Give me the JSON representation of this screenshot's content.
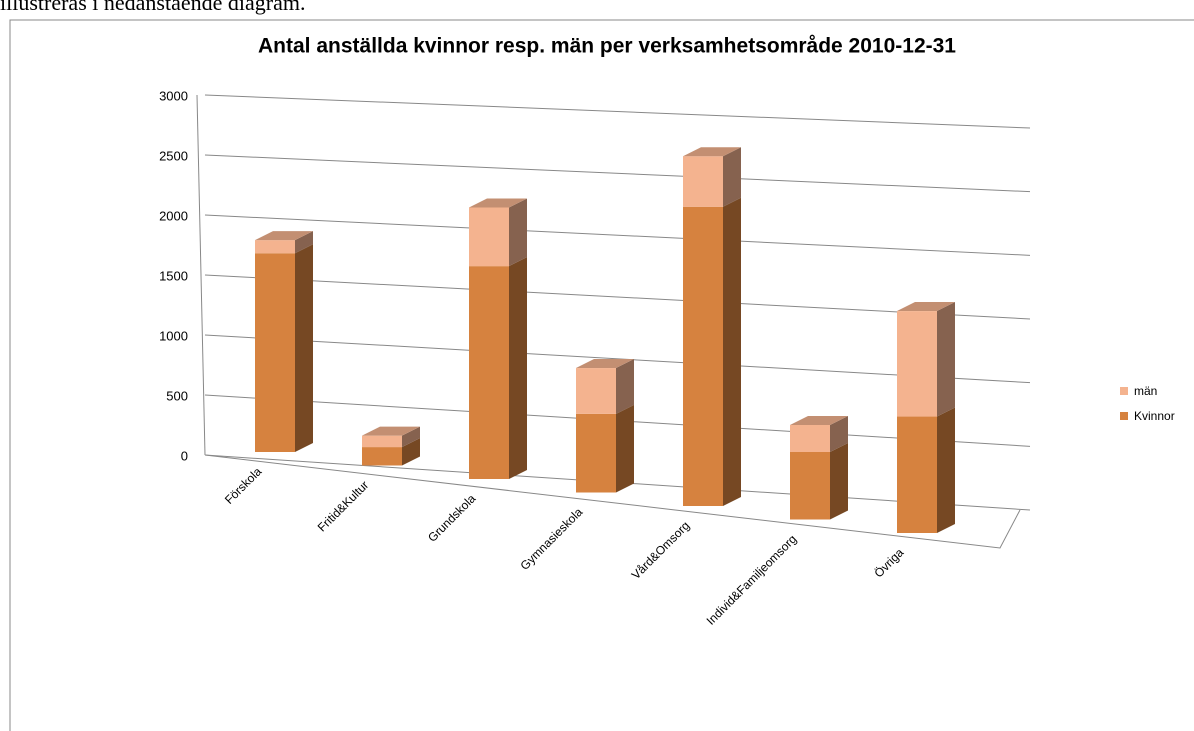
{
  "caption": "illustreras i nedanstående diagram.",
  "chart_data": {
    "type": "bar3d_stacked",
    "title": "Antal anställda kvinnor resp. män per verksamhetsområde  2010-12-31",
    "categories": [
      "Förskola",
      "Fritid&Kultur",
      "Grundskola",
      "Gymnasieskola",
      "Vård&Omsorg",
      "Individ&Familjeomsorg",
      "Övriga"
    ],
    "series": [
      {
        "name": "Kvinnor",
        "color": "#d6823f",
        "values": [
          1590,
          145,
          1650,
          600,
          2250,
          500,
          850
        ]
      },
      {
        "name": "män",
        "color": "#f4b38f",
        "values": [
          105,
          90,
          455,
          350,
          380,
          200,
          770
        ]
      }
    ],
    "ylim": [
      0,
      3000
    ],
    "yticks": [
      0,
      500,
      1000,
      1500,
      2000,
      2500,
      3000
    ],
    "grid": true,
    "legend": "right"
  }
}
